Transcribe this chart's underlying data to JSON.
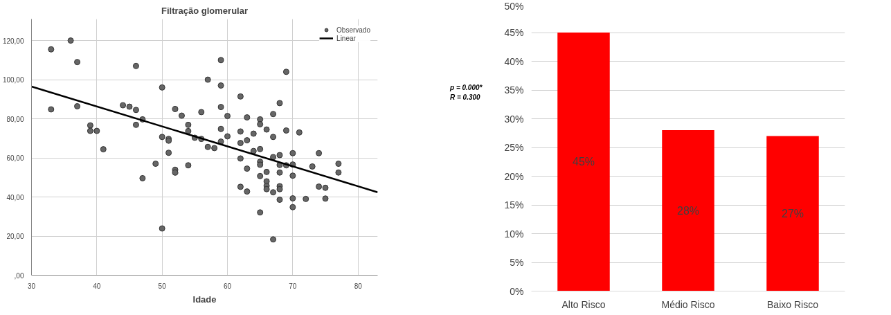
{
  "chart_data": [
    {
      "type": "scatter",
      "title": "Filtração glomerular",
      "xlabel": "Idade",
      "xlim": [
        30,
        83
      ],
      "ylim": [
        0,
        131
      ],
      "xticks": [
        30,
        40,
        50,
        60,
        70,
        80
      ],
      "yticks": [
        {
          "value": 0,
          "label": ",00"
        },
        {
          "value": 20,
          "label": "20,00"
        },
        {
          "value": 40,
          "label": "40,00"
        },
        {
          "value": 60,
          "label": "60,00"
        },
        {
          "value": 80,
          "label": "80,00"
        },
        {
          "value": 100,
          "label": "100,00"
        },
        {
          "value": 120,
          "label": "120,00"
        }
      ],
      "grid": true,
      "legend": "top right",
      "annotations": [
        "p = 0.000*",
        "R = 0.300"
      ],
      "series": [
        {
          "name": "Observado",
          "type": "scatter",
          "marker": "circle",
          "color": "#666666",
          "x": [
            33,
            33,
            36,
            37,
            37,
            39,
            39,
            40,
            41,
            44,
            45,
            46,
            46,
            46,
            47,
            47,
            49,
            50,
            50,
            50,
            51,
            51,
            51,
            52,
            52,
            52,
            53,
            54,
            54,
            54,
            55,
            56,
            56,
            57,
            57,
            58,
            59,
            59,
            59,
            59,
            59,
            60,
            60,
            62,
            62,
            62,
            62,
            62,
            63,
            63,
            63,
            63,
            64,
            64,
            65,
            65,
            65,
            65,
            65,
            65,
            65,
            66,
            66,
            66,
            66,
            66,
            67,
            67,
            67,
            67,
            67,
            68,
            68,
            68,
            68,
            68,
            68,
            68,
            69,
            69,
            69,
            70,
            70,
            70,
            70,
            70,
            71,
            72,
            73,
            74,
            74,
            75,
            75,
            77,
            77
          ],
          "values": [
            115.5,
            84.8,
            120,
            109,
            86.4,
            76.6,
            73.8,
            73.8,
            64.4,
            86.9,
            86.2,
            84.5,
            107,
            76.9,
            79.7,
            49.6,
            57,
            96,
            70.7,
            23.9,
            69.7,
            68.8,
            62.6,
            85,
            53.9,
            52.5,
            81.6,
            76.9,
            73.7,
            56.2,
            70.3,
            83.4,
            69.7,
            100,
            65.6,
            65,
            110,
            97,
            86,
            74.8,
            68.3,
            81.4,
            71,
            91.4,
            73.5,
            67.6,
            59.7,
            45.2,
            80.7,
            69,
            54.5,
            42.8,
            72.4,
            63.5,
            79.7,
            77.2,
            64.5,
            58,
            56.5,
            50.7,
            32.1,
            74.5,
            52.8,
            48,
            45.7,
            44,
            82.4,
            70.7,
            60.4,
            42.4,
            18.3,
            88,
            61.4,
            56.4,
            52.5,
            45.5,
            44,
            38.6,
            104,
            74,
            56.2,
            62.4,
            56.6,
            50.9,
            39.3,
            34.8,
            73,
            39,
            55.6,
            62.4,
            45.3,
            44.7,
            39.2,
            57,
            52.5
          ]
        },
        {
          "name": "Linear",
          "type": "line",
          "color": "#000000",
          "line_style": "solid",
          "x": [
            30,
            83
          ],
          "values": [
            96.5,
            42.4
          ]
        }
      ]
    },
    {
      "type": "bar",
      "categories": [
        "Alto Risco",
        "Médio Risco",
        "Baixo Risco"
      ],
      "values": [
        45,
        28,
        27
      ],
      "color": "#ff0000",
      "value_labels": [
        "45%",
        "28%",
        "27%"
      ],
      "ylim": [
        0,
        50
      ],
      "yticks": [
        {
          "value": 0,
          "label": "0%"
        },
        {
          "value": 5,
          "label": "5%"
        },
        {
          "value": 10,
          "label": "10%"
        },
        {
          "value": 15,
          "label": "15%"
        },
        {
          "value": 20,
          "label": "20%"
        },
        {
          "value": 25,
          "label": "25%"
        },
        {
          "value": 30,
          "label": "30%"
        },
        {
          "value": 35,
          "label": "35%"
        },
        {
          "value": 40,
          "label": "40%"
        },
        {
          "value": 45,
          "label": "45%"
        },
        {
          "value": 50,
          "label": "50%"
        }
      ],
      "grid": "y"
    }
  ]
}
